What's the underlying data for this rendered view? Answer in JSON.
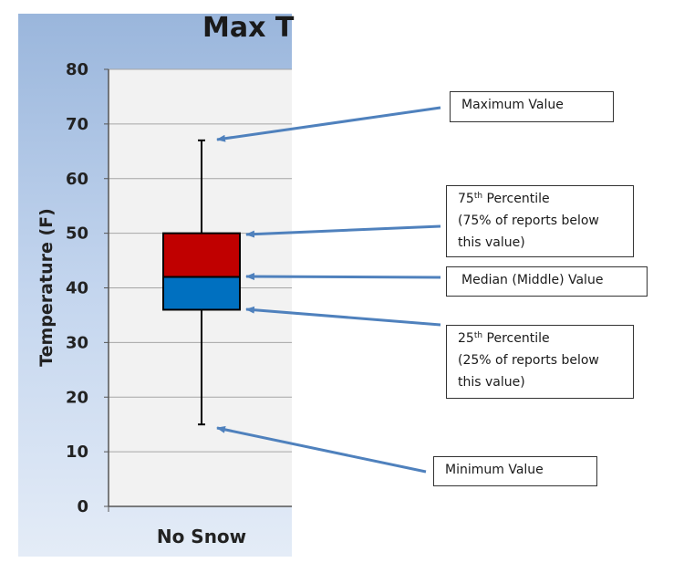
{
  "chart_data": {
    "type": "box",
    "title": "Max T",
    "ylabel": "Temperature (F)",
    "xlabel": "",
    "ylim": [
      0,
      80
    ],
    "yticks": [
      0,
      10,
      20,
      30,
      40,
      50,
      60,
      70,
      80
    ],
    "grid": true,
    "categories": [
      "No Snow"
    ],
    "boxes": [
      {
        "category": "No Snow",
        "min": 15,
        "q1": 36,
        "median": 42,
        "q3": 50,
        "max": 67
      }
    ],
    "colors": {
      "upper_box": "#c00000",
      "lower_box": "#0070c0",
      "arrow": "#4f81bd",
      "plot_bg": "#f2f2f2"
    }
  },
  "annotations": {
    "maximum": {
      "line1": "Maximum Value"
    },
    "q3": {
      "sup_num": "75",
      "sup": "th",
      "rest": " Percentile",
      "line2": "(75% of reports below",
      "line3": "this value)"
    },
    "median": {
      "line1": "Median (Middle) Value"
    },
    "q1": {
      "sup_num": "25",
      "sup": "th",
      "rest": " Percentile",
      "line2": "(25% of reports below",
      "line3": "this value)"
    },
    "minimum": {
      "line1": "Minimum Value"
    }
  }
}
